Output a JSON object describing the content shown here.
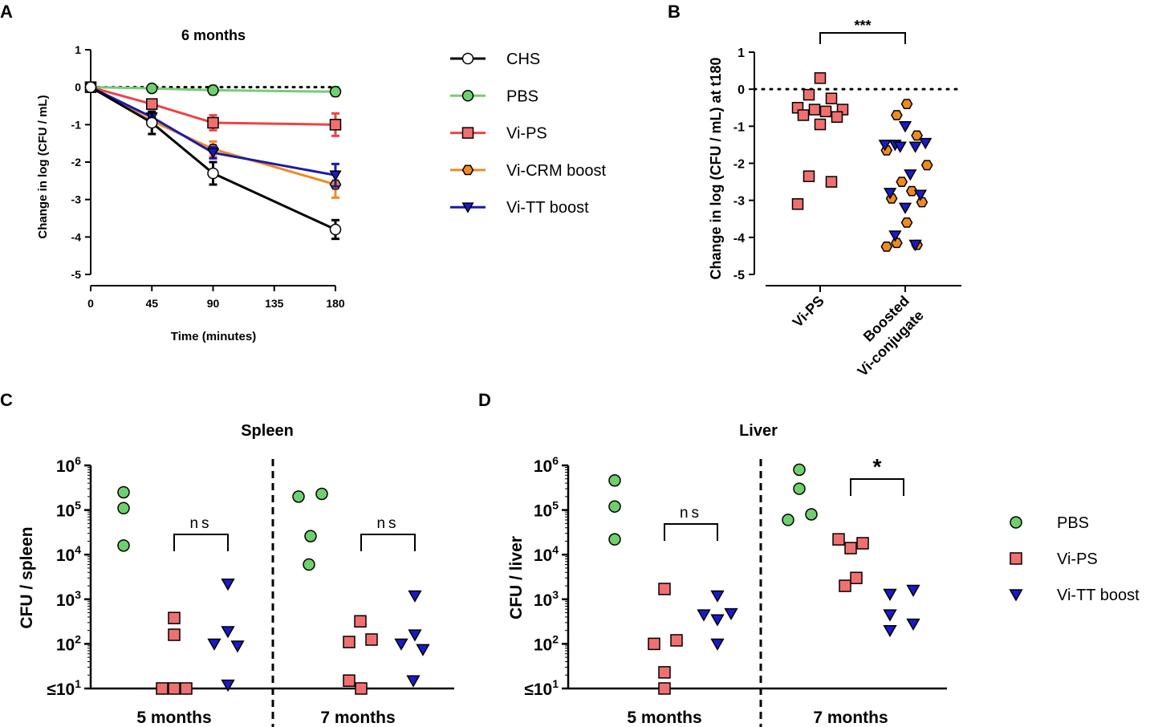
{
  "colors": {
    "chs": "#000000",
    "pbs_line": "#77cc77",
    "pbs_fill": "#6fcf6f",
    "vips_line": "#ee4444",
    "vips_fill": "#f07070",
    "crm_line": "#f08a20",
    "crm_fill": "#f08a20",
    "tt_line": "#1b1ba8",
    "tt_fill": "#1a1ac8"
  },
  "panels": {
    "a": {
      "letter": "A"
    },
    "b": {
      "letter": "B"
    },
    "c": {
      "letter": "C"
    },
    "d": {
      "letter": "D"
    }
  },
  "legend_top": [
    "CHS",
    "PBS",
    "Vi-PS",
    "Vi-CRM boost",
    "Vi-TT boost"
  ],
  "legend_bottom": [
    "PBS",
    "Vi-PS",
    "Vi-TT boost"
  ],
  "chart_data": [
    {
      "id": "A",
      "type": "line",
      "title": "6 months",
      "xlabel": "Time (minutes)",
      "ylabel": "Change in log (CFU / mL)",
      "x": [
        0,
        45,
        90,
        180
      ],
      "xlim": [
        0,
        180
      ],
      "xticks": [
        "0",
        "45",
        "90",
        "135",
        "180"
      ],
      "xtick_values": [
        0,
        45,
        90,
        135,
        180
      ],
      "ylim": [
        -5,
        1
      ],
      "yticks": [
        "1",
        "0",
        "-1",
        "-2",
        "-3",
        "-4",
        "-5"
      ],
      "ytick_values": [
        1,
        0,
        -1,
        -2,
        -3,
        -4,
        -5
      ],
      "reference_line": 0,
      "series": [
        {
          "name": "CHS",
          "marker": "circle-open",
          "values": [
            0,
            -0.95,
            -2.3,
            -3.8
          ],
          "err": [
            0,
            0.3,
            0.3,
            0.25
          ]
        },
        {
          "name": "PBS",
          "marker": "circle",
          "values": [
            0,
            -0.03,
            -0.08,
            -0.12
          ],
          "err": [
            0,
            0.05,
            0.12,
            0.12
          ]
        },
        {
          "name": "Vi-PS",
          "marker": "square",
          "values": [
            0,
            -0.45,
            -0.95,
            -1.0
          ],
          "err": [
            0,
            0.1,
            0.2,
            0.3
          ]
        },
        {
          "name": "Vi-CRM boost",
          "marker": "hexagon",
          "values": [
            0,
            -0.9,
            -1.65,
            -2.6
          ],
          "err": [
            0,
            0.1,
            0.2,
            0.35
          ]
        },
        {
          "name": "Vi-TT boost",
          "marker": "triangle-down",
          "values": [
            0,
            -0.8,
            -1.75,
            -2.35
          ],
          "err": [
            0,
            0.1,
            0.15,
            0.3
          ]
        }
      ]
    },
    {
      "id": "B",
      "type": "scatter",
      "ylabel": "Change in log (CFU / mL) at t180",
      "categories": [
        "Vi-PS",
        "Boosted\nVi-conjugate"
      ],
      "ylim": [
        -5,
        1
      ],
      "yticks": [
        "1",
        "0",
        "-1",
        "-2",
        "-3",
        "-4",
        "-5"
      ],
      "ytick_values": [
        1,
        0,
        -1,
        -2,
        -3,
        -4,
        -5
      ],
      "reference_line": 0,
      "significance": "***",
      "groups": [
        {
          "category": 0,
          "name": "Vi-PS",
          "marker": "square",
          "values": [
            0.3,
            -0.15,
            -0.25,
            -0.5,
            -0.55,
            -0.55,
            -0.6,
            -0.7,
            -0.75,
            -0.95,
            -2.35,
            -2.5,
            -3.1
          ]
        },
        {
          "category": 1,
          "name": "Vi-CRM boost",
          "marker": "hexagon",
          "values": [
            -0.4,
            -0.7,
            -1.25,
            -1.65,
            -2.05,
            -2.5,
            -2.75,
            -2.95,
            -3.05,
            -3.6,
            -4.15,
            -4.2,
            -4.25
          ]
        },
        {
          "category": 1,
          "name": "Vi-TT boost",
          "marker": "triangle-down",
          "values": [
            -1.0,
            -1.5,
            -1.55,
            -1.5,
            -1.45,
            -1.55,
            -2.3,
            -2.8,
            -2.85,
            -3.2,
            -3.95,
            -4.2
          ]
        }
      ]
    },
    {
      "id": "C",
      "type": "scatter",
      "title": "Spleen",
      "ylabel": "CFU / spleen",
      "yscale": "log",
      "ylim": [
        10,
        1000000
      ],
      "ytick_exponents": [
        6,
        5,
        4,
        3,
        2,
        1
      ],
      "groups_labels": [
        "5 months",
        "7 months"
      ],
      "sig_labels": [
        "ns",
        "ns"
      ],
      "groups": [
        {
          "period": 0,
          "name": "PBS",
          "marker": "circle",
          "values": [
            250000,
            110000,
            16000
          ]
        },
        {
          "period": 0,
          "name": "Vi-PS",
          "marker": "square",
          "values": [
            380,
            160,
            10,
            10,
            10
          ]
        },
        {
          "period": 0,
          "name": "Vi-TT boost",
          "marker": "triangle-down",
          "values": [
            2200,
            190,
            100,
            90,
            12
          ]
        },
        {
          "period": 1,
          "name": "PBS",
          "marker": "circle",
          "values": [
            200000,
            230000,
            26000,
            6000
          ]
        },
        {
          "period": 1,
          "name": "Vi-PS",
          "marker": "square",
          "values": [
            320,
            110,
            125,
            15,
            10
          ]
        },
        {
          "period": 1,
          "name": "Vi-TT boost",
          "marker": "triangle-down",
          "values": [
            1200,
            160,
            100,
            75,
            15
          ]
        }
      ]
    },
    {
      "id": "D",
      "type": "scatter",
      "title": "Liver",
      "ylabel": "CFU / liver",
      "yscale": "log",
      "ylim": [
        10,
        1000000
      ],
      "ytick_exponents": [
        6,
        5,
        4,
        3,
        2,
        1
      ],
      "groups_labels": [
        "5 months",
        "7 months"
      ],
      "sig_labels": [
        "ns",
        "*"
      ],
      "groups": [
        {
          "period": 0,
          "name": "PBS",
          "marker": "circle",
          "values": [
            460000,
            120000,
            22000
          ]
        },
        {
          "period": 0,
          "name": "Vi-PS",
          "marker": "square",
          "values": [
            1700,
            100,
            120,
            23,
            10
          ]
        },
        {
          "period": 0,
          "name": "Vi-TT boost",
          "marker": "triangle-down",
          "values": [
            1200,
            450,
            350,
            480,
            100
          ]
        },
        {
          "period": 1,
          "name": "PBS",
          "marker": "circle",
          "values": [
            800000,
            300000,
            60000,
            80000
          ]
        },
        {
          "period": 1,
          "name": "Vi-PS",
          "marker": "square",
          "values": [
            22000,
            14000,
            18000,
            3000,
            2000
          ]
        },
        {
          "period": 1,
          "name": "Vi-TT boost",
          "marker": "triangle-down",
          "values": [
            1300,
            450,
            200,
            1600,
            280
          ]
        }
      ]
    }
  ]
}
